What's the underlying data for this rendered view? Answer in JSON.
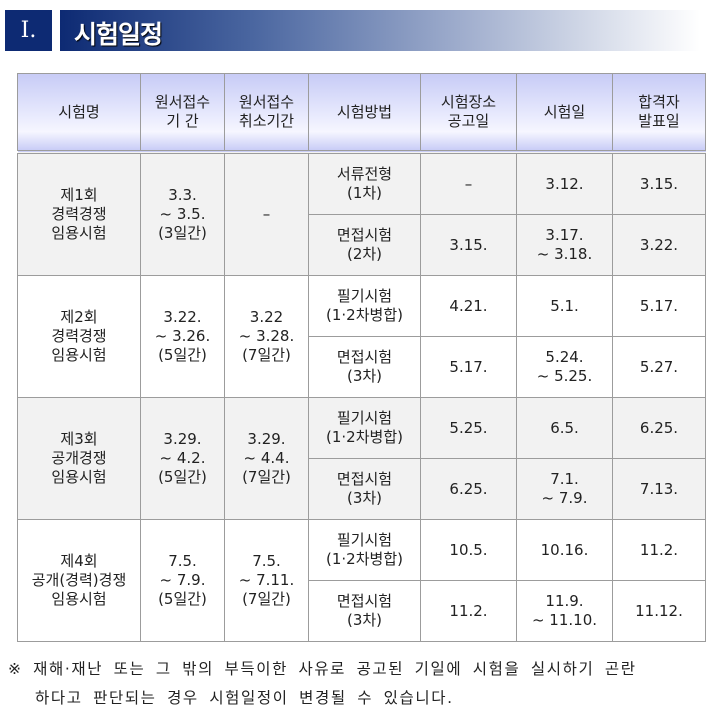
{
  "section": {
    "number": "Ⅰ.",
    "title": "시험일정"
  },
  "table": {
    "headers": [
      "시험명",
      [
        "원서접수",
        "기      간"
      ],
      [
        "원서접수",
        "취소기간"
      ],
      "시험방법",
      [
        "시험장소",
        "공고일"
      ],
      "시험일",
      [
        "합격자",
        "발표일"
      ]
    ],
    "groups": [
      {
        "name": [
          "제1회",
          "경력경쟁",
          "임용시험"
        ],
        "apply": [
          "3.3.",
          "~ 3.5.",
          "(3일간)"
        ],
        "cancel": [
          "–"
        ],
        "rows": [
          {
            "method": [
              "서류전형",
              "(1차)"
            ],
            "notice": [
              "–"
            ],
            "exam": [
              "3.12."
            ],
            "result": [
              "3.15."
            ]
          },
          {
            "method": [
              "면접시험",
              "(2차)"
            ],
            "notice": [
              "3.15."
            ],
            "exam": [
              "3.17.",
              "~  3.18."
            ],
            "result": [
              "3.22."
            ]
          }
        ]
      },
      {
        "name": [
          "제2회",
          "경력경쟁",
          "임용시험"
        ],
        "apply": [
          "3.22.",
          "~ 3.26.",
          "(5일간)"
        ],
        "cancel": [
          "3.22",
          "~  3.28.",
          "(7일간)"
        ],
        "rows": [
          {
            "method": [
              "필기시험",
              "(1·2차병합)"
            ],
            "notice": [
              "4.21."
            ],
            "exam": [
              "5.1."
            ],
            "result": [
              "5.17."
            ]
          },
          {
            "method": [
              "면접시험",
              "(3차)"
            ],
            "notice": [
              "5.17."
            ],
            "exam": [
              "5.24.",
              "~ 5.25."
            ],
            "result": [
              "5.27."
            ]
          }
        ]
      },
      {
        "name": [
          "제3회",
          "공개경쟁",
          "임용시험"
        ],
        "apply": [
          "3.29.",
          "~ 4.2.",
          "(5일간)"
        ],
        "cancel": [
          "3.29.",
          "~  4.4.",
          "(7일간)"
        ],
        "rows": [
          {
            "method": [
              "필기시험",
              "(1·2차병합)"
            ],
            "notice": [
              "5.25."
            ],
            "exam": [
              "6.5."
            ],
            "result": [
              "6.25."
            ]
          },
          {
            "method": [
              "면접시험",
              "(3차)"
            ],
            "notice": [
              "6.25."
            ],
            "exam": [
              "7.1.",
              "~ 7.9."
            ],
            "result": [
              "7.13."
            ]
          }
        ]
      },
      {
        "name": [
          "제4회",
          "공개(경력)경쟁",
          "임용시험"
        ],
        "apply": [
          "7.5.",
          "~ 7.9.",
          "(5일간)"
        ],
        "cancel": [
          "7.5.",
          "~  7.11.",
          "(7일간)"
        ],
        "rows": [
          {
            "method": [
              "필기시험",
              "(1·2차병합)"
            ],
            "notice": [
              "10.5."
            ],
            "exam": [
              "10.16."
            ],
            "result": [
              "11.2."
            ]
          },
          {
            "method": [
              "면접시험",
              "(3차)"
            ],
            "notice": [
              "11.2."
            ],
            "exam": [
              "11.9.",
              "~ 11.10."
            ],
            "result": [
              "11.12."
            ]
          }
        ]
      }
    ]
  },
  "note": {
    "line1": "※ 재해·재난 또는 그 밖의 부득이한 사유로 공고된 기일에 시험을 실시하기 곤란",
    "line2": "하다고 판단되는 경우 시험일정이 변경될 수 있습니다."
  }
}
